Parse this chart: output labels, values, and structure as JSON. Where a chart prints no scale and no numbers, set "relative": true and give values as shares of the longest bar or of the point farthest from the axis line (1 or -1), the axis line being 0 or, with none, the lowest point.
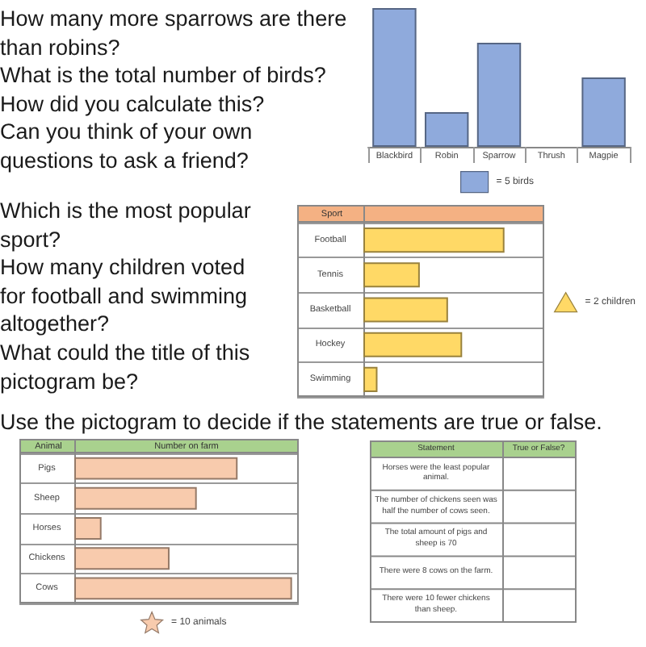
{
  "chart_data": [
    {
      "type": "bar",
      "categories": [
        "Blackbird",
        "Robin",
        "Sparrow",
        "Thrush",
        "Magpie"
      ],
      "series": [
        {
          "name": "= 5 birds",
          "color": "#8faadc",
          "values": [
            1,
            0.25,
            0.75,
            0,
            0.5
          ]
        }
      ],
      "relative": true,
      "legend": "bottom",
      "marker": "square",
      "annotations": [
        "How many more sparrows are there than robins?",
        "What is the total number of birds?",
        "How did you calculate this?",
        "Can you think of your own questions to ask a friend?"
      ]
    },
    {
      "type": "bar",
      "orientation": "horizontal",
      "ylabel": "Sport",
      "categories": [
        "Football",
        "Tennis",
        "Basketball",
        "Hockey",
        "Swimming"
      ],
      "series": [
        {
          "name": "= 2 children",
          "color": "#ffd966",
          "values": [
            1,
            0.4,
            0.6,
            0.7,
            0.1
          ]
        }
      ],
      "relative": true,
      "legend": "right",
      "marker": "triangle",
      "grid": "y",
      "annotations": [
        "Which is the most popular sport?",
        "How many children voted for football and swimming altogether?",
        "What could the title of this pictogram be?"
      ]
    },
    {
      "type": "bar",
      "orientation": "horizontal",
      "title": "Use the pictogram to decide if the statements are true or false.",
      "ylabel": "Animal",
      "xlabel": "Number on farm",
      "categories": [
        "Pigs",
        "Sheep",
        "Horses",
        "Chickens",
        "Cows"
      ],
      "series": [
        {
          "name": "= 10 animals",
          "color": "#f8cbad",
          "values": [
            0.75,
            0.5625,
            0.125,
            0.4375,
            1
          ]
        }
      ],
      "relative": true,
      "legend": "bottom",
      "marker": "star",
      "grid": "y"
    },
    {
      "type": "other",
      "annotations": [
        "Statement",
        "True or False?",
        "Horses were the least popular animal.",
        "The number of chickens seen was half the number of cows seen.",
        "The total amount of pigs and sheep is 70",
        "There were 8 cows on the farm.",
        "There were 10 fewer chickens than sheep."
      ]
    }
  ]
}
